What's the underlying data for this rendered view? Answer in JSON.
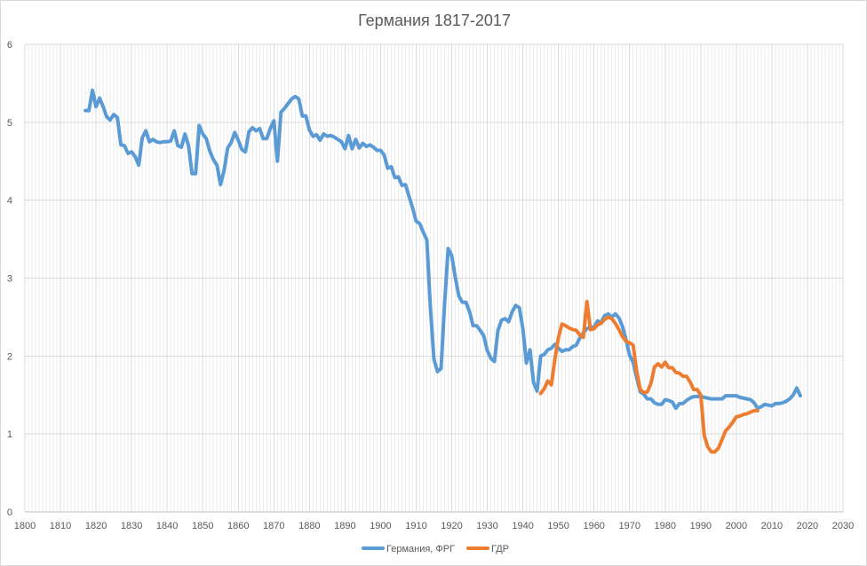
{
  "chart_data": {
    "type": "line",
    "title": "Германия 1817-2017",
    "xlabel": "",
    "ylabel": "",
    "xlim": [
      1800,
      2030
    ],
    "ylim": [
      0,
      6
    ],
    "x_ticks": [
      1800,
      1810,
      1820,
      1830,
      1840,
      1850,
      1860,
      1870,
      1880,
      1890,
      1900,
      1910,
      1920,
      1930,
      1940,
      1950,
      1960,
      1970,
      1980,
      1990,
      2000,
      2010,
      2020,
      2030
    ],
    "y_ticks": [
      0,
      1,
      2,
      3,
      4,
      5,
      6
    ],
    "grid": true,
    "minor_x_grid_step": 1,
    "legend_position": "bottom",
    "series": [
      {
        "name": "Германия, ФРГ",
        "color": "#5b9bd5",
        "points": [
          [
            1817,
            5.15
          ],
          [
            1818,
            5.15
          ],
          [
            1819,
            5.41
          ],
          [
            1820,
            5.2
          ],
          [
            1821,
            5.31
          ],
          [
            1822,
            5.2
          ],
          [
            1823,
            5.07
          ],
          [
            1824,
            5.03
          ],
          [
            1825,
            5.1
          ],
          [
            1826,
            5.06
          ],
          [
            1827,
            4.71
          ],
          [
            1828,
            4.7
          ],
          [
            1829,
            4.6
          ],
          [
            1830,
            4.62
          ],
          [
            1831,
            4.56
          ],
          [
            1832,
            4.45
          ],
          [
            1833,
            4.8
          ],
          [
            1834,
            4.89
          ],
          [
            1835,
            4.75
          ],
          [
            1836,
            4.78
          ],
          [
            1837,
            4.75
          ],
          [
            1838,
            4.74
          ],
          [
            1839,
            4.75
          ],
          [
            1840,
            4.75
          ],
          [
            1841,
            4.76
          ],
          [
            1842,
            4.89
          ],
          [
            1843,
            4.7
          ],
          [
            1844,
            4.68
          ],
          [
            1845,
            4.85
          ],
          [
            1846,
            4.7
          ],
          [
            1847,
            4.34
          ],
          [
            1848,
            4.34
          ],
          [
            1849,
            4.96
          ],
          [
            1850,
            4.85
          ],
          [
            1851,
            4.79
          ],
          [
            1852,
            4.63
          ],
          [
            1853,
            4.52
          ],
          [
            1854,
            4.45
          ],
          [
            1855,
            4.2
          ],
          [
            1856,
            4.38
          ],
          [
            1857,
            4.67
          ],
          [
            1858,
            4.74
          ],
          [
            1859,
            4.87
          ],
          [
            1860,
            4.77
          ],
          [
            1861,
            4.65
          ],
          [
            1862,
            4.62
          ],
          [
            1863,
            4.88
          ],
          [
            1864,
            4.93
          ],
          [
            1865,
            4.89
          ],
          [
            1866,
            4.92
          ],
          [
            1867,
            4.79
          ],
          [
            1868,
            4.79
          ],
          [
            1869,
            4.92
          ],
          [
            1870,
            5.02
          ],
          [
            1871,
            4.5
          ],
          [
            1872,
            5.13
          ],
          [
            1873,
            5.18
          ],
          [
            1874,
            5.24
          ],
          [
            1875,
            5.3
          ],
          [
            1876,
            5.33
          ],
          [
            1877,
            5.3
          ],
          [
            1878,
            5.08
          ],
          [
            1879,
            5.08
          ],
          [
            1880,
            4.9
          ],
          [
            1881,
            4.82
          ],
          [
            1882,
            4.84
          ],
          [
            1883,
            4.77
          ],
          [
            1884,
            4.85
          ],
          [
            1885,
            4.82
          ],
          [
            1886,
            4.83
          ],
          [
            1887,
            4.81
          ],
          [
            1888,
            4.78
          ],
          [
            1889,
            4.75
          ],
          [
            1890,
            4.66
          ],
          [
            1891,
            4.83
          ],
          [
            1892,
            4.66
          ],
          [
            1893,
            4.78
          ],
          [
            1894,
            4.67
          ],
          [
            1895,
            4.73
          ],
          [
            1896,
            4.69
          ],
          [
            1897,
            4.71
          ],
          [
            1898,
            4.68
          ],
          [
            1899,
            4.64
          ],
          [
            1900,
            4.64
          ],
          [
            1901,
            4.58
          ],
          [
            1902,
            4.41
          ],
          [
            1903,
            4.43
          ],
          [
            1904,
            4.29
          ],
          [
            1905,
            4.3
          ],
          [
            1906,
            4.19
          ],
          [
            1907,
            4.2
          ],
          [
            1908,
            4.05
          ],
          [
            1909,
            3.9
          ],
          [
            1910,
            3.73
          ],
          [
            1911,
            3.7
          ],
          [
            1912,
            3.59
          ],
          [
            1913,
            3.49
          ],
          [
            1914,
            2.62
          ],
          [
            1915,
            1.96
          ],
          [
            1916,
            1.8
          ],
          [
            1917,
            1.84
          ],
          [
            1918,
            2.68
          ],
          [
            1919,
            3.38
          ],
          [
            1920,
            3.29
          ],
          [
            1921,
            3.01
          ],
          [
            1922,
            2.77
          ],
          [
            1923,
            2.69
          ],
          [
            1924,
            2.69
          ],
          [
            1925,
            2.57
          ],
          [
            1926,
            2.39
          ],
          [
            1927,
            2.39
          ],
          [
            1928,
            2.33
          ],
          [
            1929,
            2.26
          ],
          [
            1930,
            2.07
          ],
          [
            1931,
            1.97
          ],
          [
            1932,
            1.93
          ],
          [
            1933,
            2.33
          ],
          [
            1934,
            2.46
          ],
          [
            1935,
            2.48
          ],
          [
            1936,
            2.44
          ],
          [
            1937,
            2.57
          ],
          [
            1938,
            2.65
          ],
          [
            1939,
            2.62
          ],
          [
            1940,
            2.35
          ],
          [
            1941,
            1.91
          ],
          [
            1942,
            2.08
          ],
          [
            1943,
            1.66
          ],
          [
            1944,
            1.55
          ],
          [
            1945,
            2.0
          ],
          [
            1946,
            2.02
          ],
          [
            1947,
            2.08
          ],
          [
            1948,
            2.1
          ],
          [
            1949,
            2.15
          ],
          [
            1950,
            2.1
          ],
          [
            1951,
            2.06
          ],
          [
            1952,
            2.08
          ],
          [
            1953,
            2.08
          ],
          [
            1954,
            2.12
          ],
          [
            1955,
            2.14
          ],
          [
            1956,
            2.23
          ],
          [
            1957,
            2.3
          ],
          [
            1958,
            2.35
          ],
          [
            1959,
            2.37
          ],
          [
            1960,
            2.37
          ],
          [
            1961,
            2.45
          ],
          [
            1962,
            2.43
          ],
          [
            1963,
            2.52
          ],
          [
            1964,
            2.54
          ],
          [
            1965,
            2.5
          ],
          [
            1966,
            2.54
          ],
          [
            1967,
            2.49
          ],
          [
            1968,
            2.38
          ],
          [
            1969,
            2.21
          ],
          [
            1970,
            2.01
          ],
          [
            1971,
            1.92
          ],
          [
            1972,
            1.72
          ],
          [
            1973,
            1.54
          ],
          [
            1974,
            1.51
          ],
          [
            1975,
            1.45
          ],
          [
            1976,
            1.45
          ],
          [
            1977,
            1.4
          ],
          [
            1978,
            1.38
          ],
          [
            1979,
            1.38
          ],
          [
            1980,
            1.44
          ],
          [
            1981,
            1.43
          ],
          [
            1982,
            1.41
          ],
          [
            1983,
            1.33
          ],
          [
            1984,
            1.39
          ],
          [
            1985,
            1.39
          ],
          [
            1986,
            1.43
          ],
          [
            1987,
            1.46
          ],
          [
            1988,
            1.48
          ],
          [
            1989,
            1.48
          ],
          [
            1990,
            1.48
          ],
          [
            1991,
            1.47
          ],
          [
            1992,
            1.46
          ],
          [
            1993,
            1.45
          ],
          [
            1994,
            1.45
          ],
          [
            1995,
            1.45
          ],
          [
            1996,
            1.45
          ],
          [
            1997,
            1.49
          ],
          [
            1998,
            1.49
          ],
          [
            1999,
            1.49
          ],
          [
            2000,
            1.49
          ],
          [
            2001,
            1.47
          ],
          [
            2002,
            1.46
          ],
          [
            2003,
            1.45
          ],
          [
            2004,
            1.44
          ],
          [
            2005,
            1.4
          ],
          [
            2006,
            1.33
          ],
          [
            2007,
            1.35
          ],
          [
            2008,
            1.38
          ],
          [
            2009,
            1.37
          ],
          [
            2010,
            1.36
          ],
          [
            2011,
            1.39
          ],
          [
            2012,
            1.39
          ],
          [
            2013,
            1.4
          ],
          [
            2014,
            1.42
          ],
          [
            2015,
            1.45
          ],
          [
            2016,
            1.5
          ],
          [
            2017,
            1.59
          ],
          [
            2018,
            1.49
          ]
        ]
      },
      {
        "name": "ГДР",
        "color": "#ed7d31",
        "points": [
          [
            1945,
            1.52
          ],
          [
            1946,
            1.58
          ],
          [
            1947,
            1.68
          ],
          [
            1948,
            1.63
          ],
          [
            1949,
            1.96
          ],
          [
            1950,
            2.24
          ],
          [
            1951,
            2.41
          ],
          [
            1952,
            2.39
          ],
          [
            1953,
            2.36
          ],
          [
            1954,
            2.34
          ],
          [
            1955,
            2.33
          ],
          [
            1956,
            2.27
          ],
          [
            1957,
            2.24
          ],
          [
            1958,
            2.7
          ],
          [
            1959,
            2.34
          ],
          [
            1960,
            2.35
          ],
          [
            1961,
            2.4
          ],
          [
            1962,
            2.42
          ],
          [
            1963,
            2.47
          ],
          [
            1964,
            2.5
          ],
          [
            1965,
            2.48
          ],
          [
            1966,
            2.42
          ],
          [
            1967,
            2.34
          ],
          [
            1968,
            2.25
          ],
          [
            1969,
            2.19
          ],
          [
            1970,
            2.17
          ],
          [
            1971,
            2.14
          ],
          [
            1972,
            1.8
          ],
          [
            1973,
            1.57
          ],
          [
            1974,
            1.53
          ],
          [
            1975,
            1.54
          ],
          [
            1976,
            1.65
          ],
          [
            1977,
            1.86
          ],
          [
            1978,
            1.9
          ],
          [
            1979,
            1.86
          ],
          [
            1980,
            1.92
          ],
          [
            1981,
            1.85
          ],
          [
            1982,
            1.85
          ],
          [
            1983,
            1.79
          ],
          [
            1984,
            1.78
          ],
          [
            1985,
            1.74
          ],
          [
            1986,
            1.74
          ],
          [
            1987,
            1.67
          ],
          [
            1988,
            1.57
          ],
          [
            1989,
            1.57
          ],
          [
            1990,
            1.5
          ],
          [
            1991,
            0.98
          ],
          [
            1992,
            0.83
          ],
          [
            1993,
            0.77
          ],
          [
            1994,
            0.77
          ],
          [
            1995,
            0.82
          ],
          [
            1996,
            0.93
          ],
          [
            1997,
            1.04
          ],
          [
            1998,
            1.09
          ],
          [
            1999,
            1.15
          ],
          [
            2000,
            1.22
          ],
          [
            2001,
            1.23
          ],
          [
            2002,
            1.25
          ],
          [
            2003,
            1.26
          ],
          [
            2004,
            1.28
          ],
          [
            2005,
            1.3
          ],
          [
            2006,
            1.3
          ]
        ]
      }
    ]
  }
}
